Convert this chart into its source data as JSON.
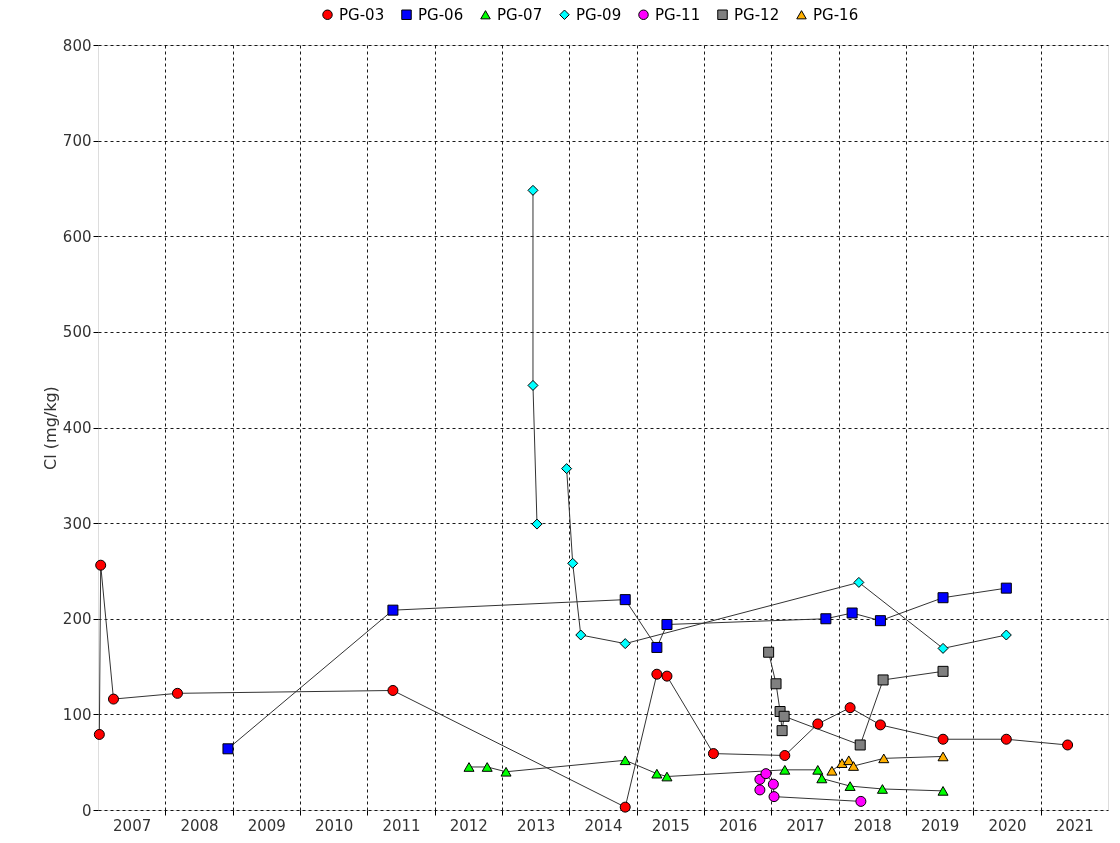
{
  "chart_data": {
    "type": "line",
    "ylabel": "Cl (mg/kg)",
    "xlim": [
      2007,
      2022
    ],
    "ylim": [
      0,
      800
    ],
    "yticks": [
      0,
      100,
      200,
      300,
      400,
      500,
      600,
      700,
      800
    ],
    "xticks": [
      {
        "value": 2007.5,
        "label": "2007"
      },
      {
        "value": 2008,
        "label": null
      },
      {
        "value": 2008.5,
        "label": "2008"
      },
      {
        "value": 2009,
        "label": null
      },
      {
        "value": 2009.5,
        "label": "2009"
      },
      {
        "value": 2010,
        "label": null
      },
      {
        "value": 2010.5,
        "label": "2010"
      },
      {
        "value": 2011,
        "label": null
      },
      {
        "value": 2011.5,
        "label": "2011"
      },
      {
        "value": 2012,
        "label": null
      },
      {
        "value": 2012.5,
        "label": "2012"
      },
      {
        "value": 2013,
        "label": null
      },
      {
        "value": 2013.5,
        "label": "2013"
      },
      {
        "value": 2014,
        "label": null
      },
      {
        "value": 2014.5,
        "label": "2014"
      },
      {
        "value": 2015,
        "label": null
      },
      {
        "value": 2015.5,
        "label": "2015"
      },
      {
        "value": 2016,
        "label": null
      },
      {
        "value": 2016.5,
        "label": "2016"
      },
      {
        "value": 2017,
        "label": null
      },
      {
        "value": 2017.5,
        "label": "2017"
      },
      {
        "value": 2018,
        "label": null
      },
      {
        "value": 2018.5,
        "label": "2018"
      },
      {
        "value": 2019,
        "label": null
      },
      {
        "value": 2019.5,
        "label": "2019"
      },
      {
        "value": 2020,
        "label": null
      },
      {
        "value": 2020.5,
        "label": "2020"
      },
      {
        "value": 2021,
        "label": null
      },
      {
        "value": 2021.5,
        "label": "2021"
      }
    ],
    "grid": true,
    "legend": "top right",
    "line_style": "solid",
    "series": [
      {
        "name": "PG-03",
        "color": "#ff0000",
        "marker": "circle",
        "x": [
          2007.02,
          2007.04,
          2007.23,
          2008.18,
          2011.38,
          2014.83,
          2015.3,
          2015.45,
          2016.14,
          2017.2,
          2017.69,
          2018.17,
          2018.62,
          2019.55,
          2020.49,
          2021.4
        ],
        "values": [
          79,
          256,
          116,
          122,
          125,
          3,
          142,
          140,
          59,
          57,
          90,
          107,
          89,
          74,
          74,
          68
        ]
      },
      {
        "name": "PG-06",
        "color": "#0000ff",
        "marker": "square",
        "x": [
          2008.93,
          2011.38,
          2014.83,
          2015.3,
          2015.45,
          2017.81,
          2018.2,
          2018.62,
          2019.55,
          2020.49
        ],
        "values": [
          64,
          209,
          220,
          170,
          194,
          200,
          206,
          198,
          222,
          232
        ]
      },
      {
        "name": "PG-07",
        "color": "#00ff00",
        "marker": "triangle",
        "x": [
          2012.51,
          2012.78,
          2013.06,
          2014.83,
          2015.3,
          2015.45,
          2017.2,
          2017.69,
          2017.75,
          2018.17,
          2018.65,
          2019.55
        ],
        "values": [
          45,
          45,
          40,
          52,
          38,
          35,
          42,
          42,
          33,
          25,
          22,
          20
        ]
      },
      {
        "name": "PG-09",
        "color": "#00ffff",
        "marker": "diamond",
        "x": [
          2013.46,
          2013.46,
          2013.52,
          2013.7,
          2013.96,
          2014.05,
          2014.17,
          2014.83,
          2018.3,
          2019.55,
          2020.49
        ],
        "values": [
          648,
          444,
          299,
          null,
          357,
          258,
          183,
          174,
          238,
          169,
          183
        ]
      },
      {
        "name": "PG-11",
        "color": "#ff00ff",
        "marker": "circle",
        "x": [
          2016.83,
          2016.83,
          2016.92,
          2017.03,
          2017.04,
          2018.33
        ],
        "values": [
          21,
          32,
          38,
          27,
          14,
          9
        ]
      },
      {
        "name": "PG-12",
        "color": "#808080",
        "marker": "square",
        "x": [
          2016.96,
          2017.07,
          2017.13,
          2017.16,
          2017.19,
          2018.32,
          2018.66,
          2019.55
        ],
        "values": [
          165,
          132,
          103,
          83,
          98,
          68,
          136,
          145
        ]
      },
      {
        "name": "PG-16",
        "color": "#ffb000",
        "marker": "triangle",
        "x": [
          2017.9,
          2018.05,
          2018.15,
          2018.22,
          2018.67,
          2019.55
        ],
        "values": [
          41,
          49,
          52,
          46,
          54,
          56
        ]
      }
    ]
  }
}
